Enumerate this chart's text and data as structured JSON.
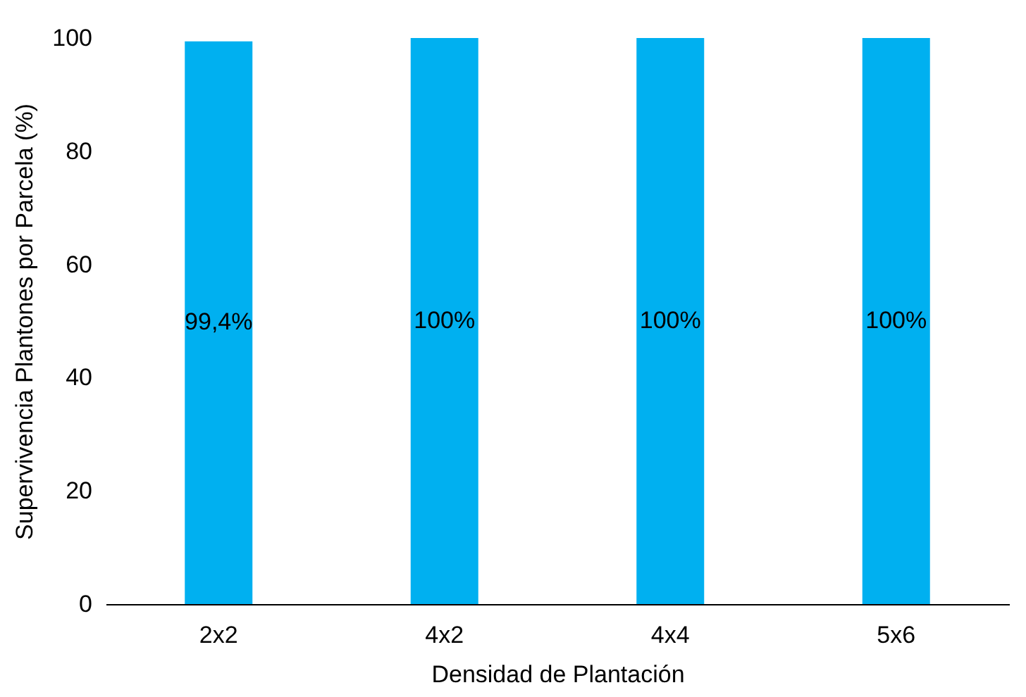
{
  "chart_data": {
    "type": "bar",
    "xlabel": "Densidad de Plantación",
    "ylabel": "Supervivencia Plantones por Parcela (%)",
    "categories": [
      "2x2",
      "4x2",
      "4x4",
      "5x6"
    ],
    "values": [
      99.4,
      100,
      100,
      100
    ],
    "value_labels": [
      "99,4%",
      "100%",
      "100%",
      "100%"
    ],
    "color": "#00b0f0",
    "ylim": [
      0,
      100
    ],
    "yticks": [
      0,
      20,
      40,
      60,
      80,
      100
    ],
    "grid": false
  }
}
